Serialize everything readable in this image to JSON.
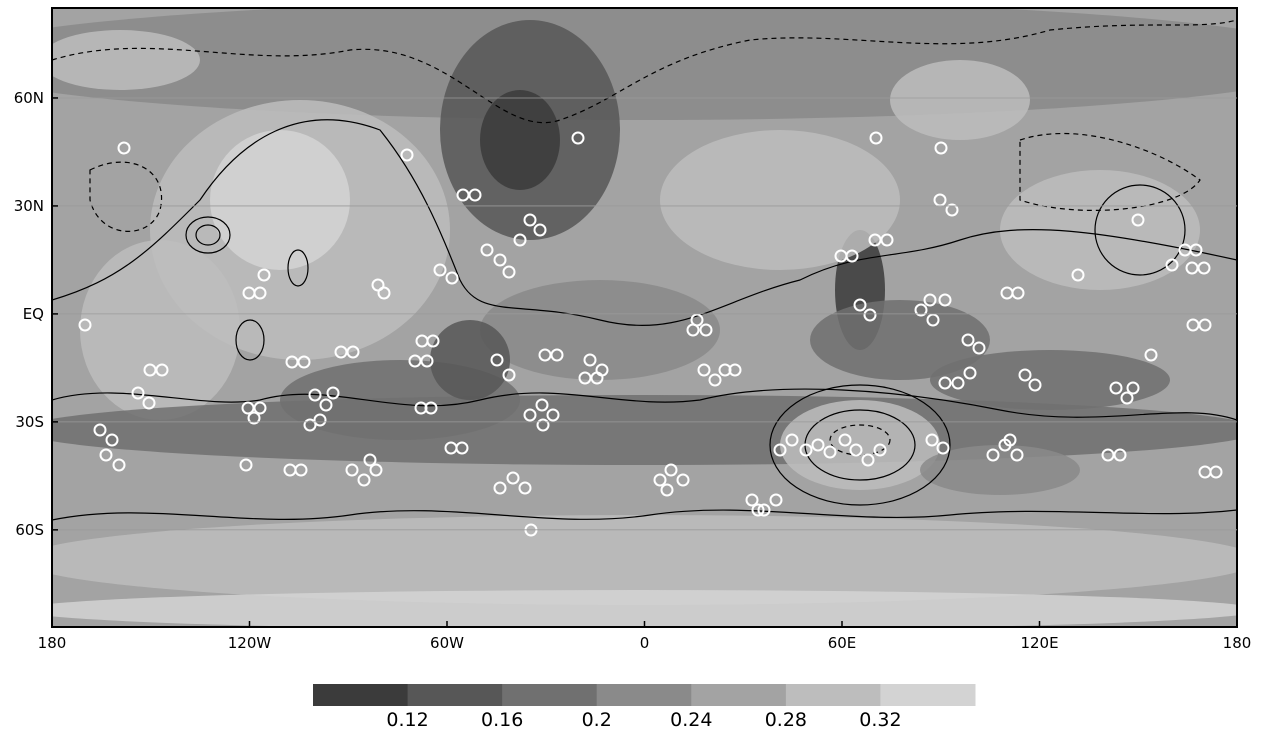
{
  "map": {
    "xlim": [
      -180,
      180
    ],
    "ylim": [
      -87,
      85
    ],
    "xticks": [
      {
        "value": -180,
        "label": "180"
      },
      {
        "value": -120,
        "label": "120W"
      },
      {
        "value": -60,
        "label": "60W"
      },
      {
        "value": 0,
        "label": "0"
      },
      {
        "value": 60,
        "label": "60E"
      },
      {
        "value": 120,
        "label": "120E"
      },
      {
        "value": 180,
        "label": "180"
      }
    ],
    "yticks": [
      {
        "value": 60,
        "label": "60N"
      },
      {
        "value": 30,
        "label": "30N"
      },
      {
        "value": 0,
        "label": "EQ"
      },
      {
        "value": -30,
        "label": "30S"
      },
      {
        "value": -60,
        "label": "60S"
      }
    ],
    "colorbar": {
      "ticks": [
        0.12,
        0.16,
        0.2,
        0.24,
        0.28,
        0.32
      ],
      "colors": [
        "#3b3b3b",
        "#575757",
        "#707070",
        "#8a8a8a",
        "#a3a3a3",
        "#bdbdbd",
        "#d3d3d3"
      ]
    }
  }
}
